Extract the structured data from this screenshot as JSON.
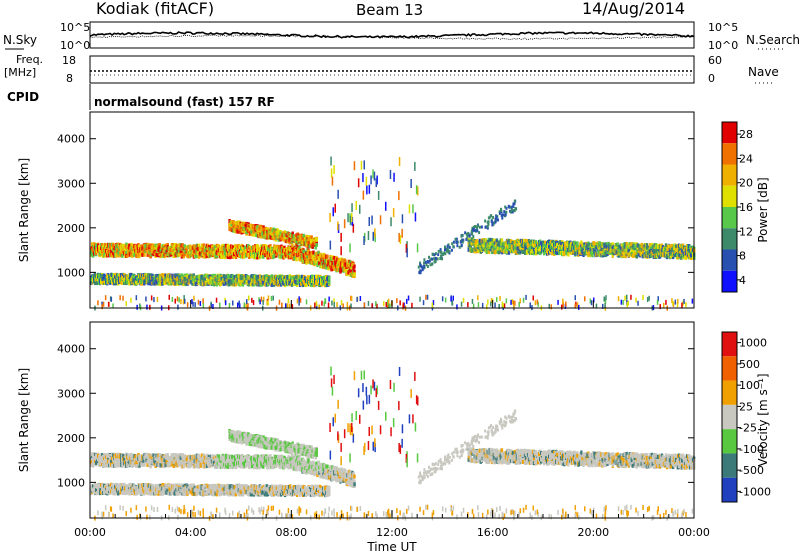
{
  "header": {
    "station": "Kodiak (fitACF)",
    "beam": "Beam 13",
    "date": "14/Aug/2014"
  },
  "top_panel": {
    "left_label": "N.Sky",
    "left_ticks": [
      "10^5",
      "10^0"
    ],
    "right_ticks": [
      "10^5",
      "10^0"
    ],
    "right_label": "N.Search"
  },
  "freq_panel": {
    "left_label_1": "Freq.",
    "left_label_2": "[MHz]",
    "left_ticks": [
      "18",
      "8"
    ],
    "right_ticks": [
      "60",
      "0"
    ],
    "right_label": "Nave"
  },
  "cpid": {
    "label": "CPID",
    "text": "normalsound (fast) 157 RF"
  },
  "chart_data": [
    {
      "type": "heatmap",
      "panel": "power",
      "ylabel": "Slant Range [km]",
      "ylim": [
        200,
        4600
      ],
      "yticks": [
        "1000",
        "2000",
        "3000",
        "4000"
      ],
      "xlim": [
        "00:00",
        "24:00"
      ],
      "colorbar": {
        "label": "Power [dB]",
        "ticks": [
          "28",
          "24",
          "20",
          "16",
          "12",
          "8",
          "4"
        ],
        "colors": [
          "#1010ff",
          "#2850b0",
          "#3c8a6a",
          "#58c84a",
          "#e0e000",
          "#f0b000",
          "#f07000",
          "#e00000"
        ]
      },
      "bands": [
        {
          "from": "00:00",
          "to": "08:00",
          "center_km": [
            1550,
            1500
          ],
          "width_km": 260,
          "level": "high"
        },
        {
          "from": "08:00",
          "to": "10:30",
          "center_km": [
            1500,
            1100
          ],
          "width_km": 300,
          "level": "high"
        },
        {
          "from": "15:00",
          "to": "24:00",
          "center_km": [
            1650,
            1500
          ],
          "width_km": 280,
          "level": "mid"
        },
        {
          "from": "00:00",
          "to": "09:30",
          "center_km": [
            900,
            850
          ],
          "width_km": 200,
          "level": "mid"
        },
        {
          "from": "05:30",
          "to": "09:00",
          "center_km": [
            2100,
            1700
          ],
          "width_km": 220,
          "level": "high"
        }
      ]
    },
    {
      "type": "heatmap",
      "panel": "velocity",
      "ylabel": "Slant Range [km]",
      "ylim": [
        200,
        4600
      ],
      "yticks": [
        "1000",
        "2000",
        "3000",
        "4000"
      ],
      "xlim": [
        "00:00",
        "24:00"
      ],
      "xticks": [
        "00:00",
        "04:00",
        "08:00",
        "12:00",
        "16:00",
        "20:00",
        "00:00"
      ],
      "xlabel": "Time UT",
      "colorbar": {
        "label": "Velocity [m s⁻¹]",
        "ticks": [
          "1000",
          "500",
          "100",
          "25",
          "-25",
          "-100",
          "-500",
          "-1000"
        ],
        "colors": [
          "#2040c0",
          "#3c7a7a",
          "#58c840",
          "#c8c8c0",
          "#f0a000",
          "#f06000",
          "#e01010"
        ]
      }
    }
  ]
}
